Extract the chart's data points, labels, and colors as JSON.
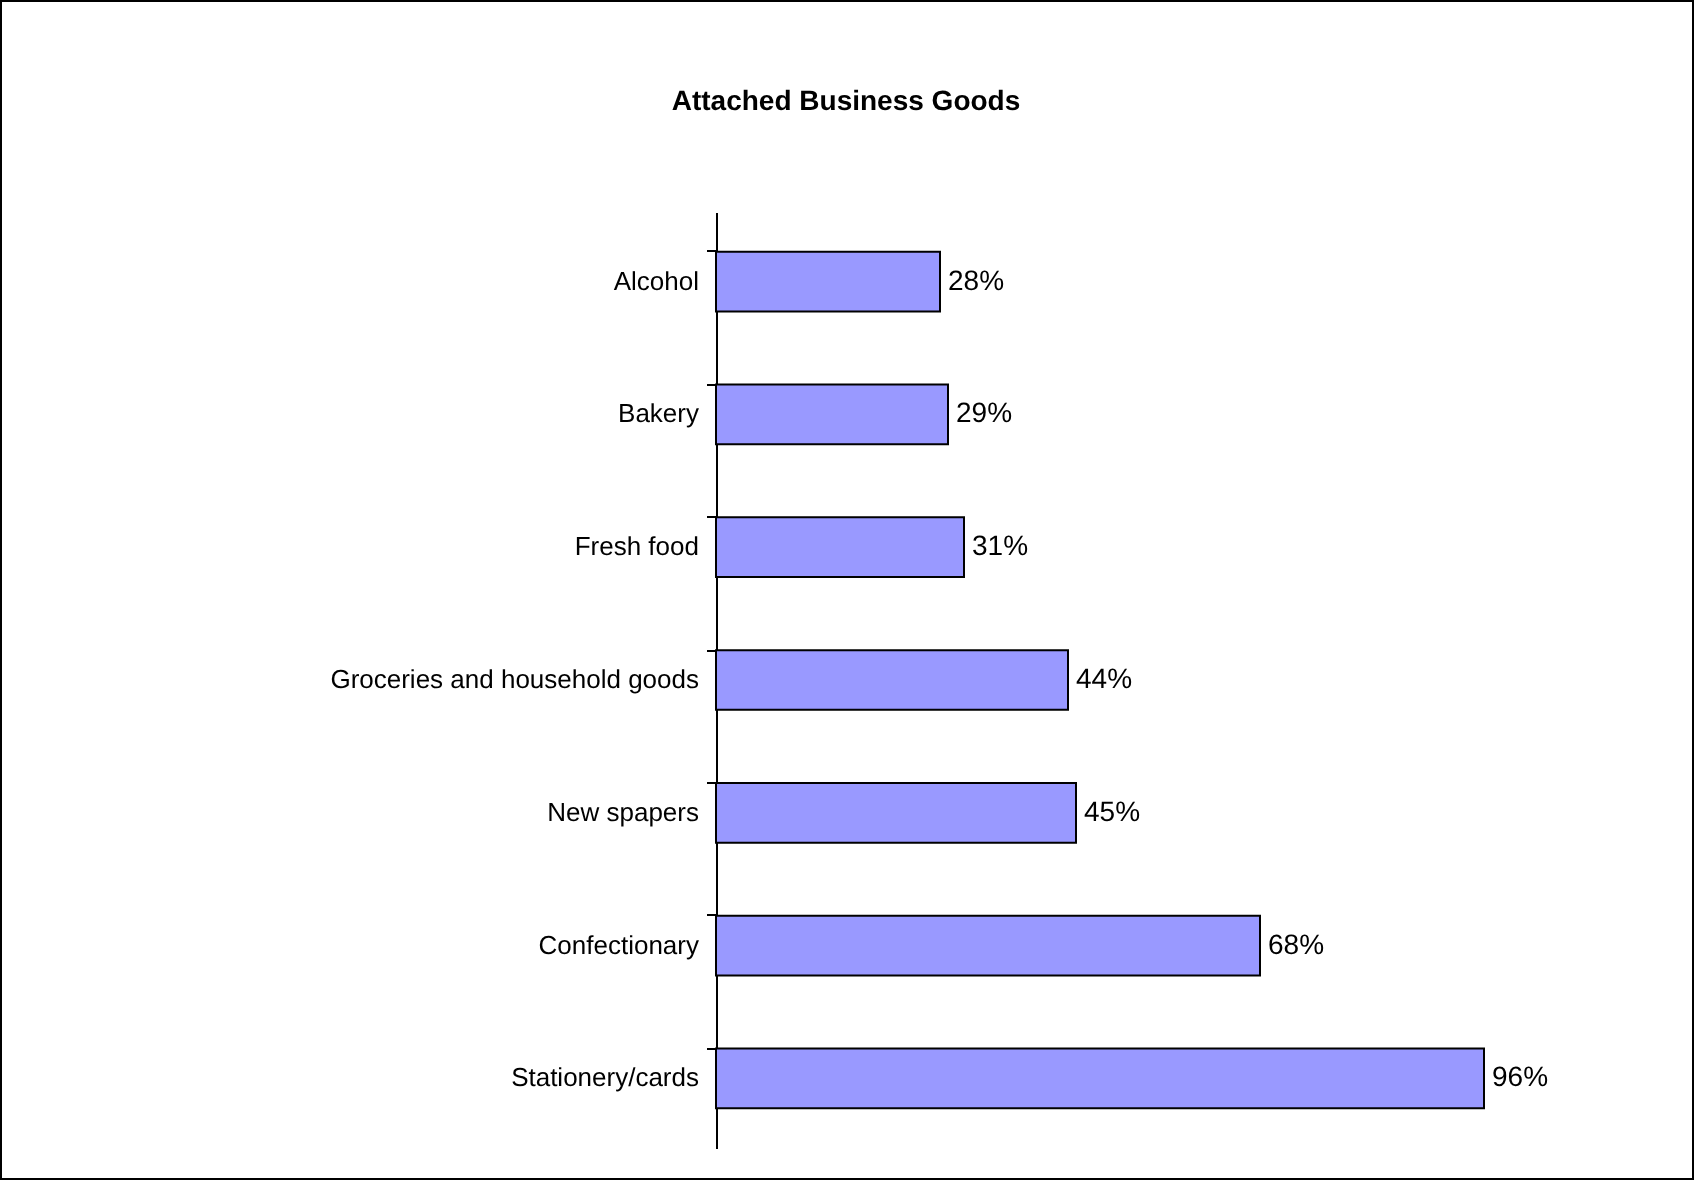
{
  "chart_data": {
    "type": "bar",
    "orientation": "horizontal",
    "title": "Attached Business Goods",
    "categories": [
      "Alcohol",
      "Bakery",
      "Fresh food",
      "Groceries and household goods",
      "New spapers",
      "Confectionary",
      "Stationery/cards"
    ],
    "values": [
      28,
      29,
      31,
      44,
      45,
      68,
      96
    ],
    "value_labels": [
      "28%",
      "29%",
      "31%",
      "44%",
      "45%",
      "68%",
      "96%"
    ],
    "color": "#9999ff",
    "grid": false,
    "tick_labels": "y"
  }
}
